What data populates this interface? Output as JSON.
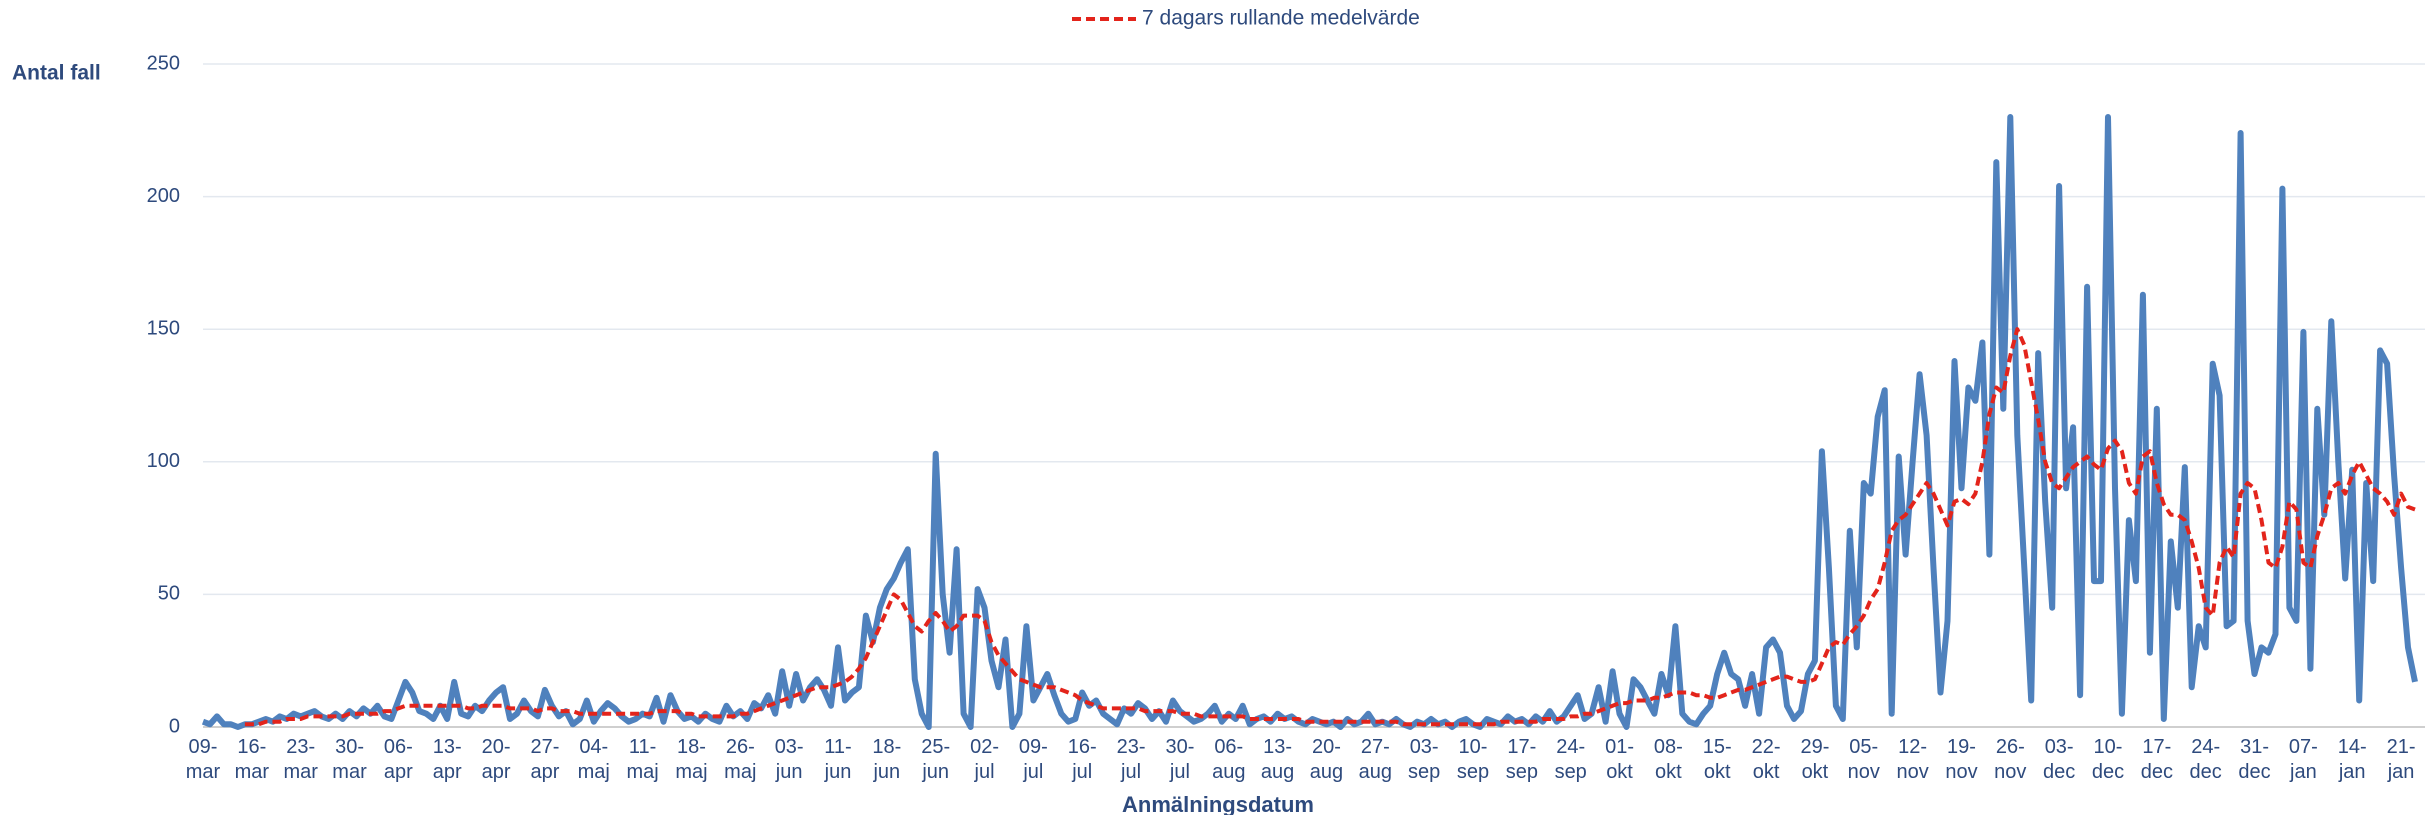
{
  "chart_data": {
    "type": "line",
    "y_label": "Antal fall",
    "x_label": "Anmälningsdatum",
    "categories": [
      "09-mar",
      null,
      null,
      null,
      null,
      null,
      null,
      "16-mar",
      null,
      null,
      null,
      null,
      null,
      null,
      "23-mar",
      null,
      null,
      null,
      null,
      null,
      null,
      "30-mar",
      null,
      null,
      null,
      null,
      null,
      null,
      "06-apr",
      null,
      null,
      null,
      null,
      null,
      null,
      "13-apr",
      null,
      null,
      null,
      null,
      null,
      null,
      "20-apr",
      null,
      null,
      null,
      null,
      null,
      null,
      "27-apr",
      null,
      null,
      null,
      null,
      null,
      null,
      "04-maj",
      null,
      null,
      null,
      null,
      null,
      null,
      "11-maj",
      null,
      null,
      null,
      null,
      null,
      null,
      "18-maj",
      null,
      null,
      null,
      null,
      null,
      null,
      "26-maj",
      null,
      null,
      null,
      null,
      null,
      null,
      "03-jun",
      null,
      null,
      null,
      null,
      null,
      null,
      "11-jun",
      null,
      null,
      null,
      null,
      null,
      null,
      "18-jun",
      null,
      null,
      null,
      null,
      null,
      null,
      "25-jun",
      null,
      null,
      null,
      null,
      null,
      null,
      "02-jul",
      null,
      null,
      null,
      null,
      null,
      null,
      "09-jul",
      null,
      null,
      null,
      null,
      null,
      null,
      "16-jul",
      null,
      null,
      null,
      null,
      null,
      null,
      "23-jul",
      null,
      null,
      null,
      null,
      null,
      null,
      "30-jul",
      null,
      null,
      null,
      null,
      null,
      null,
      "06-aug",
      null,
      null,
      null,
      null,
      null,
      null,
      "13-aug",
      null,
      null,
      null,
      null,
      null,
      null,
      "20-aug",
      null,
      null,
      null,
      null,
      null,
      null,
      "27-aug",
      null,
      null,
      null,
      null,
      null,
      null,
      "03-sep",
      null,
      null,
      null,
      null,
      null,
      null,
      "10-sep",
      null,
      null,
      null,
      null,
      null,
      null,
      "17-sep",
      null,
      null,
      null,
      null,
      null,
      null,
      "24-sep",
      null,
      null,
      null,
      null,
      null,
      null,
      "01-okt",
      null,
      null,
      null,
      null,
      null,
      null,
      "08-okt",
      null,
      null,
      null,
      null,
      null,
      null,
      "15-okt",
      null,
      null,
      null,
      null,
      null,
      null,
      "22-okt",
      null,
      null,
      null,
      null,
      null,
      null,
      "29-okt",
      null,
      null,
      null,
      null,
      null,
      null,
      "05-nov",
      null,
      null,
      null,
      null,
      null,
      null,
      "12-nov",
      null,
      null,
      null,
      null,
      null,
      null,
      "19-nov",
      null,
      null,
      null,
      null,
      null,
      null,
      "26-nov",
      null,
      null,
      null,
      null,
      null,
      null,
      "03-dec",
      null,
      null,
      null,
      null,
      null,
      null,
      "10-dec",
      null,
      null,
      null,
      null,
      null,
      null,
      "17-dec",
      null,
      null,
      null,
      null,
      null,
      null,
      "24-dec",
      null,
      null,
      null,
      null,
      null,
      null,
      "31-dec",
      null,
      null,
      null,
      null,
      null,
      null,
      "07-jan",
      null,
      null,
      null,
      null,
      null,
      null,
      "14-jan",
      null,
      null,
      null,
      null,
      null,
      null,
      "21-jan",
      null,
      null
    ],
    "series": [
      {
        "color": "#4f81bd",
        "dashed": false,
        "values": [
          2,
          1,
          4,
          1,
          1,
          0,
          1,
          1,
          2,
          3,
          2,
          4,
          3,
          5,
          4,
          5,
          6,
          4,
          3,
          5,
          3,
          6,
          4,
          7,
          5,
          8,
          4,
          3,
          10,
          17,
          13,
          6,
          5,
          3,
          8,
          3,
          17,
          5,
          4,
          8,
          6,
          10,
          13,
          15,
          3,
          5,
          10,
          6,
          4,
          14,
          8,
          4,
          6,
          1,
          3,
          10,
          2,
          6,
          9,
          7,
          4,
          2,
          3,
          5,
          4,
          11,
          2,
          12,
          6,
          3,
          4,
          2,
          5,
          3,
          2,
          8,
          4,
          6,
          3,
          9,
          7,
          12,
          5,
          21,
          8,
          20,
          10,
          15,
          18,
          14,
          8,
          30,
          10,
          13,
          15,
          42,
          32,
          45,
          52,
          56,
          62,
          67,
          18,
          5,
          0,
          103,
          50,
          28,
          67,
          5,
          0,
          52,
          45,
          25,
          15,
          33,
          0,
          5,
          38,
          10,
          15,
          20,
          12,
          5,
          2,
          3,
          13,
          8,
          10,
          5,
          3,
          1,
          7,
          5,
          9,
          7,
          3,
          6,
          2,
          10,
          6,
          4,
          2,
          3,
          5,
          8,
          2,
          5,
          3,
          8,
          1,
          3,
          4,
          2,
          5,
          3,
          4,
          2,
          1,
          3,
          2,
          1,
          2,
          0,
          3,
          1,
          2,
          5,
          1,
          2,
          1,
          3,
          1,
          0,
          2,
          1,
          3,
          1,
          2,
          0,
          2,
          3,
          1,
          0,
          3,
          2,
          1,
          4,
          2,
          3,
          1,
          4,
          2,
          6,
          2,
          4,
          8,
          12,
          3,
          5,
          15,
          2,
          21,
          5,
          0,
          18,
          15,
          10,
          5,
          20,
          12,
          38,
          5,
          2,
          1,
          5,
          8,
          20,
          28,
          20,
          18,
          8,
          20,
          5,
          30,
          33,
          28,
          8,
          3,
          6,
          20,
          25,
          104,
          60,
          8,
          3,
          74,
          30,
          92,
          88,
          117,
          127,
          5,
          102,
          65,
          100,
          133,
          110,
          60,
          13,
          40,
          138,
          90,
          128,
          123,
          145,
          65,
          213,
          120,
          230,
          110,
          60,
          10,
          141,
          85,
          45,
          204,
          90,
          113,
          12,
          166,
          55,
          55,
          230,
          90,
          5,
          78,
          55,
          163,
          28,
          120,
          3,
          70,
          45,
          98,
          15,
          38,
          30,
          137,
          125,
          38,
          40,
          224,
          40,
          20,
          30,
          28,
          35,
          203,
          45,
          40,
          149,
          22,
          120,
          80,
          153,
          100,
          56,
          97,
          10,
          92,
          55,
          142,
          137,
          95,
          60,
          30,
          17
        ]
      },
      {
        "name": "7 dagars rullande medelvärde",
        "color": "#e3241b",
        "dashed": true,
        "values": [
          null,
          null,
          null,
          null,
          null,
          null,
          1,
          1,
          1,
          2,
          2,
          2,
          3,
          3,
          3,
          4,
          4,
          4,
          4,
          4,
          4,
          5,
          5,
          5,
          5,
          5,
          6,
          6,
          7,
          8,
          8,
          8,
          8,
          8,
          8,
          8,
          8,
          8,
          7,
          7,
          8,
          8,
          8,
          8,
          7,
          7,
          7,
          7,
          6,
          7,
          7,
          6,
          6,
          6,
          5,
          5,
          5,
          5,
          5,
          5,
          5,
          5,
          5,
          5,
          5,
          6,
          6,
          6,
          6,
          5,
          5,
          4,
          4,
          4,
          4,
          4,
          4,
          5,
          5,
          6,
          7,
          8,
          9,
          10,
          11,
          12,
          13,
          14,
          15,
          15,
          15,
          16,
          17,
          19,
          22,
          26,
          32,
          38,
          44,
          50,
          48,
          43,
          38,
          36,
          40,
          43,
          40,
          36,
          38,
          42,
          42,
          42,
          40,
          32,
          27,
          24,
          21,
          18,
          17,
          16,
          15,
          15,
          15,
          14,
          13,
          12,
          10,
          9,
          8,
          7,
          7,
          7,
          7,
          7,
          7,
          6,
          6,
          6,
          6,
          6,
          5,
          5,
          5,
          4,
          4,
          4,
          4,
          4,
          4,
          4,
          3,
          3,
          3,
          3,
          3,
          3,
          3,
          3,
          2,
          2,
          2,
          2,
          2,
          2,
          2,
          2,
          2,
          2,
          2,
          2,
          2,
          2,
          1,
          1,
          1,
          1,
          1,
          1,
          1,
          1,
          1,
          1,
          1,
          1,
          1,
          1,
          2,
          2,
          2,
          2,
          2,
          2,
          3,
          3,
          3,
          3,
          4,
          4,
          5,
          5,
          6,
          7,
          8,
          9,
          9,
          10,
          10,
          10,
          11,
          11,
          12,
          13,
          13,
          13,
          12,
          12,
          11,
          11,
          12,
          13,
          14,
          14,
          15,
          16,
          17,
          18,
          19,
          19,
          18,
          17,
          17,
          18,
          24,
          30,
          32,
          31,
          35,
          38,
          42,
          48,
          52,
          62,
          74,
          78,
          80,
          84,
          88,
          92,
          88,
          82,
          76,
          85,
          86,
          84,
          88,
          100,
          118,
          128,
          126,
          140,
          150,
          144,
          130,
          116,
          100,
          92,
          90,
          94,
          98,
          100,
          102,
          99,
          97,
          105,
          108,
          104,
          92,
          88,
          102,
          104,
          92,
          84,
          80,
          80,
          78,
          70,
          60,
          45,
          42,
          62,
          68,
          64,
          88,
          92,
          90,
          78,
          62,
          60,
          68,
          85,
          82,
          62,
          60,
          72,
          80,
          90,
          92,
          88,
          95,
          100,
          95,
          90,
          88,
          85,
          80,
          88,
          83,
          82
        ]
      }
    ],
    "ylim": [
      0,
      250
    ],
    "yticks": [
      0,
      50,
      100,
      150,
      200,
      250
    ],
    "grid": true,
    "legend": "top"
  }
}
